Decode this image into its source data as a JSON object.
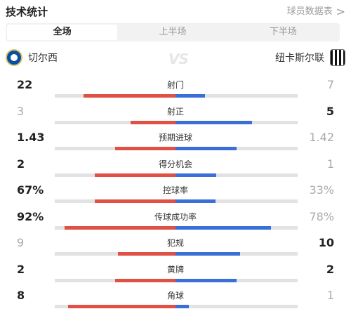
{
  "header": {
    "title": "技术统计",
    "more_label": "球员数据表",
    "chevron": ">"
  },
  "tabs": [
    {
      "label": "全场",
      "active": true
    },
    {
      "label": "上半场",
      "active": false
    },
    {
      "label": "下半场",
      "active": false
    }
  ],
  "teams": {
    "home": {
      "name": "切尔西",
      "crest_icon": "chelsea-crest-icon"
    },
    "away": {
      "name": "纽卡斯尔联",
      "crest_icon": "newcastle-crest-icon"
    },
    "vs_label": "VS"
  },
  "colors": {
    "home": "#e05045",
    "away": "#3a6fd8",
    "track": "#e2e2e2"
  },
  "stats": [
    {
      "label": "射门",
      "home": "22",
      "away": "7",
      "home_share": 0.759,
      "away_share": 0.241,
      "leader": "home"
    },
    {
      "label": "射正",
      "home": "3",
      "away": "5",
      "home_share": 0.375,
      "away_share": 0.625,
      "leader": "away"
    },
    {
      "label": "预期进球",
      "home": "1.43",
      "away": "1.42",
      "home_share": 0.502,
      "away_share": 0.498,
      "leader": "home"
    },
    {
      "label": "得分机会",
      "home": "2",
      "away": "1",
      "home_share": 0.667,
      "away_share": 0.333,
      "leader": "home"
    },
    {
      "label": "控球率",
      "home": "67%",
      "away": "33%",
      "home_share": 0.67,
      "away_share": 0.33,
      "leader": "home"
    },
    {
      "label": "传球成功率",
      "home": "92%",
      "away": "78%",
      "home_share": 0.92,
      "away_share": 0.78,
      "leader": "home"
    },
    {
      "label": "犯规",
      "home": "9",
      "away": "10",
      "home_share": 0.474,
      "away_share": 0.526,
      "leader": "away"
    },
    {
      "label": "黄牌",
      "home": "2",
      "away": "2",
      "home_share": 0.5,
      "away_share": 0.5,
      "leader": "both"
    },
    {
      "label": "角球",
      "home": "8",
      "away": "1",
      "home_share": 0.889,
      "away_share": 0.111,
      "leader": "home"
    }
  ]
}
